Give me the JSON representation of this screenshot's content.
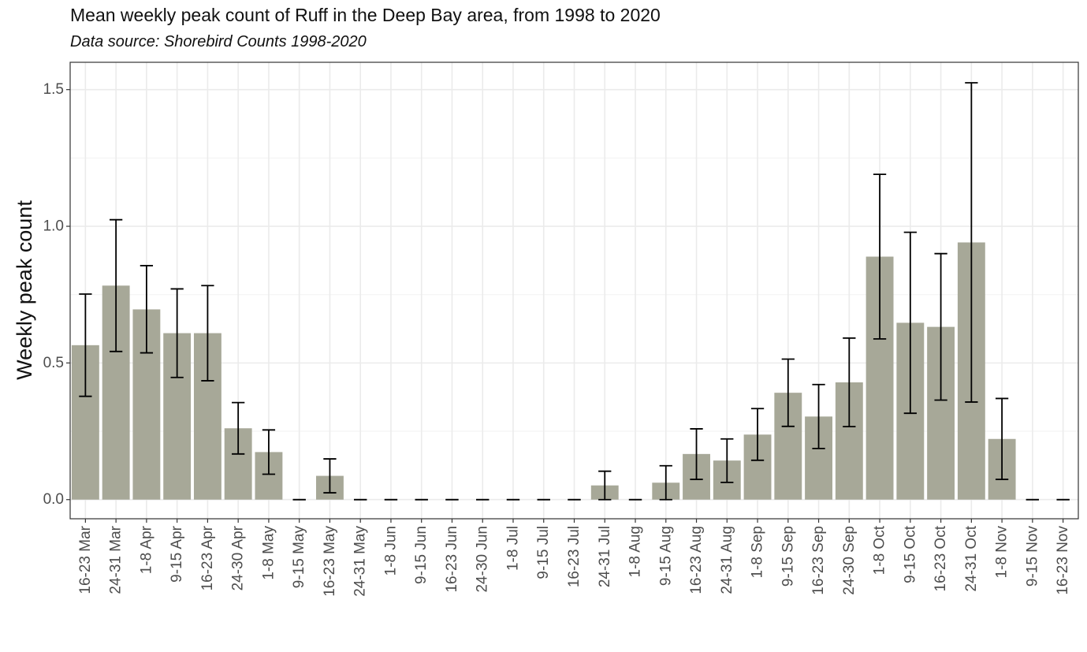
{
  "header": {
    "title": "Mean weekly peak count of Ruff in the Deep Bay area, from 1998 to 2020",
    "subtitle": "Data source: Shorebird Counts 1998-2020"
  },
  "chart_data": {
    "type": "bar",
    "title": "Mean weekly peak count of Ruff in the Deep Bay area, from 1998 to 2020",
    "subtitle": "Data source: Shorebird Counts 1998-2020",
    "xlabel": "",
    "ylabel": "Weekly peak count",
    "ylim": [
      -0.07,
      1.6
    ],
    "yticks": [
      0.0,
      0.5,
      1.0,
      1.5
    ],
    "ytick_labels": [
      "0.0",
      "0.5",
      "1.0",
      "1.5"
    ],
    "grid": true,
    "bar_color": "#a7a898",
    "errorbar_color": "#000000",
    "categories": [
      "16-23 Mar",
      "24-31 Mar",
      "1-8 Apr",
      "9-15 Apr",
      "16-23 Apr",
      "24-30 Apr",
      "1-8 May",
      "9-15 May",
      "16-23 May",
      "24-31 May",
      "1-8 Jun",
      "9-15 Jun",
      "16-23 Jun",
      "24-30 Jun",
      "1-8 Jul",
      "9-15 Jul",
      "16-23 Jul",
      "24-31 Jul",
      "1-8 Aug",
      "9-15 Aug",
      "16-23 Aug",
      "24-31 Aug",
      "1-8 Sep",
      "9-15 Sep",
      "16-23 Sep",
      "24-30 Sep",
      "1-8 Oct",
      "9-15 Oct",
      "16-23 Oct",
      "24-31 Oct",
      "1-8 Nov",
      "9-15 Nov",
      "16-23 Nov"
    ],
    "values": [
      0.565,
      0.783,
      0.696,
      0.609,
      0.609,
      0.261,
      0.174,
      0.0,
      0.087,
      0.0,
      0.0,
      0.0,
      0.0,
      0.0,
      0.0,
      0.0,
      0.0,
      0.052,
      0.0,
      0.062,
      0.167,
      0.143,
      0.238,
      0.391,
      0.304,
      0.429,
      0.889,
      0.647,
      0.632,
      0.941,
      0.222,
      0.0,
      0.0
    ],
    "error_low": [
      0.378,
      0.542,
      0.537,
      0.447,
      0.435,
      0.167,
      0.093,
      0.0,
      0.025,
      0.0,
      0.0,
      0.0,
      0.0,
      0.0,
      0.0,
      0.0,
      0.0,
      0.0,
      0.0,
      0.0,
      0.074,
      0.063,
      0.144,
      0.268,
      0.187,
      0.267,
      0.588,
      0.316,
      0.364,
      0.357,
      0.074,
      0.0,
      0.0
    ],
    "error_high": [
      0.752,
      1.024,
      0.856,
      0.771,
      0.783,
      0.355,
      0.255,
      0.0,
      0.149,
      0.0,
      0.0,
      0.0,
      0.0,
      0.0,
      0.0,
      0.0,
      0.0,
      0.104,
      0.0,
      0.124,
      0.259,
      0.222,
      0.333,
      0.514,
      0.421,
      0.591,
      1.19,
      0.978,
      0.9,
      1.525,
      0.37,
      0.0,
      0.0
    ]
  }
}
